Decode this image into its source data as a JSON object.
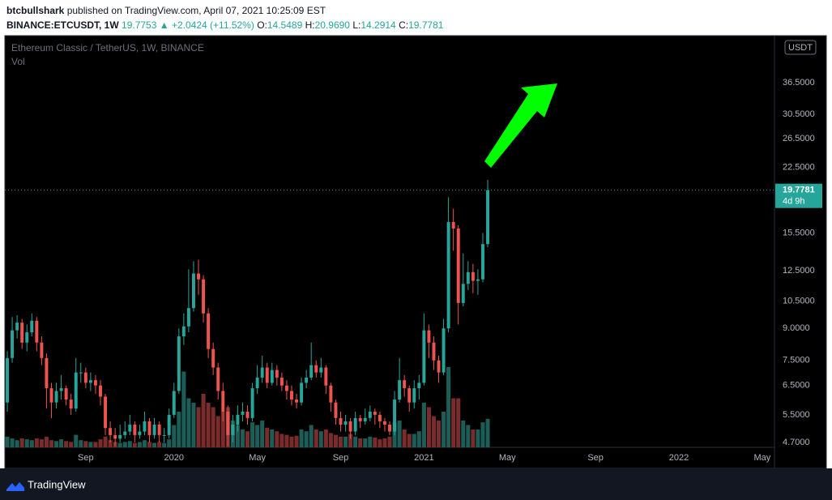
{
  "header": {
    "author": "btcbullshark",
    "published": "published on TradingView.com, April 07, 2021 10:25:09 EST",
    "symbol": "BINANCE:ETCUSDT, 1W",
    "last": "19.7753",
    "direction": "▲",
    "change": "+2.0424 (+11.52%)",
    "ohlc": [
      {
        "label": "O:",
        "value": "14.5489"
      },
      {
        "label": "H:",
        "value": "20.9690"
      },
      {
        "label": "L:",
        "value": "14.2914"
      },
      {
        "label": "C:",
        "value": "19.7781"
      }
    ]
  },
  "footer": {
    "brand": "TradingView"
  },
  "chart_data": {
    "type": "candlestick",
    "title": "Ethereum Classic / TetherUS, 1W, BINANCE",
    "volume_title": "Vol",
    "currency": "USDT",
    "countdown": "4d 9h",
    "log_scale": true,
    "grid": false,
    "up_color": "#26a69a",
    "down_color": "#ef5350",
    "vol_up_color": "#1c5e57",
    "vol_down_color": "#7a2c2c",
    "ylim": [
      4.57,
      47.7
    ],
    "vlim": [
      0,
      100
    ],
    "yticks": [
      {
        "value": 4.7,
        "label": "4.7000"
      },
      {
        "value": 5.5,
        "label": "5.5000"
      },
      {
        "value": 6.5,
        "label": "6.5000"
      },
      {
        "value": 7.5,
        "label": "7.5000"
      },
      {
        "value": 9,
        "label": "9.0000"
      },
      {
        "value": 10.5,
        "label": "10.5000"
      },
      {
        "value": 12.5,
        "label": "12.5000"
      },
      {
        "value": 15.5,
        "label": "15.5000"
      },
      {
        "value": 22.5,
        "label": "22.5000"
      },
      {
        "value": 26.5,
        "label": "26.5000"
      },
      {
        "value": 30.5,
        "label": "30.5000"
      },
      {
        "value": 36.5,
        "label": "36.5000"
      }
    ],
    "categories": [
      null,
      null,
      null,
      null,
      null,
      null,
      null,
      null,
      null,
      null,
      null,
      null,
      null,
      null,
      null,
      null,
      "Sep",
      null,
      null,
      null,
      null,
      null,
      null,
      null,
      null,
      null,
      null,
      null,
      null,
      null,
      null,
      null,
      null,
      null,
      "2020",
      null,
      null,
      null,
      null,
      null,
      null,
      null,
      null,
      null,
      null,
      null,
      null,
      null,
      null,
      null,
      null,
      "May",
      null,
      null,
      null,
      null,
      null,
      null,
      null,
      null,
      null,
      null,
      null,
      null,
      null,
      null,
      null,
      null,
      "Sep",
      null,
      null,
      null,
      null,
      null,
      null,
      null,
      null,
      null,
      null,
      null,
      null,
      null,
      null,
      null,
      null,
      "2021",
      null,
      null,
      null,
      null,
      null,
      null,
      null,
      null,
      null,
      null,
      null,
      null,
      null,
      null,
      null,
      null,
      "May",
      null,
      null,
      null,
      null,
      null,
      null,
      null,
      null,
      null,
      null,
      null,
      null,
      null,
      null,
      null,
      null,
      null,
      "Sep",
      null,
      null,
      null,
      null,
      null,
      null,
      null,
      null,
      null,
      null,
      null,
      null,
      null,
      null,
      null,
      null,
      "2022",
      null,
      null,
      null,
      null,
      null,
      null,
      null,
      null,
      null,
      null,
      null,
      null,
      null,
      null,
      null,
      null,
      "May",
      null,
      null
    ],
    "open": [
      5.9,
      7.6,
      8.9,
      9.3,
      8.3,
      8.8,
      9.4,
      8.3,
      7.6,
      6.4,
      5.9,
      6.3,
      6.4,
      6.0,
      5.7,
      7.0,
      7.0,
      6.6,
      6.7,
      6.5,
      6.1,
      5.1,
      4.9,
      4.8,
      4.9,
      5.0,
      5.2,
      4.9,
      5.0,
      5.3,
      4.9,
      5.2,
      4.9,
      4.9,
      5.5,
      6.3,
      8.6,
      9.1,
      10.1,
      12.3,
      11.9,
      9.8,
      8.0,
      7.2,
      6.3,
      5.6,
      4.9,
      5.2,
      5.5,
      5.6,
      5.4,
      6.4,
      6.8,
      7.2,
      6.6,
      7.1,
      6.8,
      6.5,
      6.3,
      6.0,
      5.9,
      6.6,
      6.8,
      7.3,
      7.0,
      7.2,
      6.5,
      5.9,
      5.4,
      5.2,
      5.3,
      5.0,
      5.4,
      5.3,
      5.4,
      5.6,
      5.5,
      5.3,
      5.2,
      5.0,
      6.0,
      6.7,
      6.4,
      5.9,
      6.4,
      6.6,
      8.9,
      8.3,
      7.5,
      7.0,
      9.0,
      16.5,
      15.9,
      10.4,
      11.6,
      12.4,
      11.8,
      11.9,
      14.5489,
      null,
      null,
      null,
      null,
      null,
      null,
      null,
      null,
      null,
      null,
      null,
      null,
      null,
      null,
      null,
      null,
      null,
      null,
      null,
      null,
      null,
      null,
      null,
      null,
      null,
      null,
      null,
      null,
      null,
      null,
      null,
      null,
      null,
      null,
      null,
      null,
      null,
      null,
      null,
      null,
      null,
      null,
      null,
      null,
      null,
      null,
      null,
      null,
      null,
      null,
      null,
      null,
      null,
      null,
      null,
      null,
      null,
      null
    ],
    "high": [
      7.9,
      9.6,
      9.7,
      9.5,
      9.2,
      9.8,
      9.6,
      8.6,
      7.8,
      6.6,
      6.6,
      6.9,
      6.5,
      6.2,
      7.6,
      7.4,
      7.2,
      7.0,
      6.9,
      6.7,
      6.2,
      5.3,
      5.1,
      5.2,
      5.3,
      5.5,
      5.3,
      5.2,
      5.6,
      5.4,
      5.4,
      5.3,
      5.1,
      5.7,
      6.6,
      9.0,
      9.8,
      12.6,
      13.2,
      13.3,
      12.2,
      10.1,
      8.3,
      7.4,
      6.6,
      5.8,
      5.5,
      5.8,
      5.9,
      5.8,
      6.6,
      7.3,
      7.7,
      7.4,
      7.4,
      7.3,
      7.0,
      6.7,
      6.5,
      6.2,
      6.8,
      7.1,
      8.3,
      7.5,
      7.6,
      7.3,
      6.6,
      6.0,
      5.6,
      5.5,
      5.4,
      5.6,
      5.5,
      5.7,
      5.8,
      5.7,
      5.6,
      5.4,
      5.3,
      6.3,
      7.6,
      6.9,
      6.5,
      6.7,
      6.9,
      9.8,
      9.2,
      8.6,
      7.7,
      9.5,
      19.0,
      17.8,
      16.2,
      13.8,
      13.2,
      13.0,
      12.6,
      15.5,
      20.969,
      null,
      null,
      null,
      null,
      null,
      null,
      null,
      null,
      null,
      null,
      null,
      null,
      null,
      null,
      null,
      null,
      null,
      null,
      null,
      null,
      null,
      null,
      null,
      null,
      null,
      null,
      null,
      null,
      null,
      null,
      null,
      null,
      null,
      null,
      null,
      null,
      null,
      null,
      null,
      null,
      null,
      null,
      null,
      null,
      null,
      null,
      null,
      null,
      null,
      null,
      null,
      null,
      null,
      null,
      null,
      null,
      null,
      null
    ],
    "low": [
      5.6,
      7.4,
      8.5,
      8.0,
      7.9,
      8.6,
      7.9,
      7.3,
      5.7,
      5.4,
      5.7,
      6.0,
      5.8,
      5.5,
      5.6,
      6.6,
      6.4,
      6.3,
      6.2,
      5.8,
      4.9,
      4.7,
      4.6,
      4.7,
      4.8,
      4.9,
      4.7,
      4.8,
      4.9,
      4.7,
      4.8,
      4.7,
      4.7,
      4.8,
      5.4,
      6.2,
      8.2,
      8.8,
      9.9,
      10.9,
      9.3,
      7.6,
      6.9,
      6.0,
      5.3,
      4.6,
      4.7,
      5.0,
      5.3,
      5.2,
      5.3,
      6.2,
      6.6,
      6.4,
      6.5,
      6.5,
      6.3,
      6.0,
      5.8,
      5.7,
      5.8,
      6.4,
      6.7,
      6.8,
      6.8,
      6.2,
      5.6,
      5.2,
      5.0,
      5.0,
      4.8,
      4.9,
      5.1,
      5.2,
      5.3,
      5.2,
      5.1,
      5.0,
      4.9,
      4.9,
      5.9,
      6.1,
      5.6,
      5.7,
      6.0,
      6.5,
      7.6,
      7.1,
      6.6,
      6.9,
      8.8,
      14.0,
      9.2,
      10.2,
      11.2,
      11.0,
      10.9,
      11.7,
      14.2914,
      null,
      null,
      null,
      null,
      null,
      null,
      null,
      null,
      null,
      null,
      null,
      null,
      null,
      null,
      null,
      null,
      null,
      null,
      null,
      null,
      null,
      null,
      null,
      null,
      null,
      null,
      null,
      null,
      null,
      null,
      null,
      null,
      null,
      null,
      null,
      null,
      null,
      null,
      null,
      null,
      null,
      null,
      null,
      null,
      null,
      null,
      null,
      null,
      null,
      null,
      null,
      null,
      null,
      null,
      null,
      null,
      null,
      null
    ],
    "close": [
      7.6,
      8.9,
      9.3,
      8.3,
      8.8,
      9.4,
      8.3,
      7.6,
      6.4,
      5.9,
      6.3,
      6.4,
      6.0,
      5.7,
      7.0,
      7.0,
      6.6,
      6.7,
      6.5,
      6.1,
      5.1,
      4.9,
      4.8,
      4.9,
      5.0,
      5.2,
      4.9,
      5.0,
      5.3,
      4.9,
      5.2,
      4.9,
      4.9,
      5.5,
      6.3,
      8.6,
      9.1,
      10.1,
      12.3,
      11.9,
      9.8,
      8.0,
      7.2,
      6.3,
      5.6,
      4.9,
      5.2,
      5.5,
      5.6,
      5.4,
      6.4,
      6.8,
      7.2,
      6.6,
      7.1,
      6.8,
      6.5,
      6.3,
      6.0,
      5.9,
      6.6,
      6.8,
      7.3,
      7.0,
      7.2,
      6.5,
      5.9,
      5.4,
      5.2,
      5.3,
      5.0,
      5.4,
      5.3,
      5.4,
      5.6,
      5.5,
      5.3,
      5.2,
      5.0,
      6.0,
      6.7,
      6.4,
      5.9,
      6.4,
      6.6,
      8.9,
      8.3,
      7.5,
      7.0,
      9.0,
      16.5,
      15.9,
      10.4,
      11.6,
      12.4,
      11.8,
      11.9,
      14.5489,
      19.7781,
      null,
      null,
      null,
      null,
      null,
      null,
      null,
      null,
      null,
      null,
      null,
      null,
      null,
      null,
      null,
      null,
      null,
      null,
      null,
      null,
      null,
      null,
      null,
      null,
      null,
      null,
      null,
      null,
      null,
      null,
      null,
      null,
      null,
      null,
      null,
      null,
      null,
      null,
      null,
      null,
      null,
      null,
      null,
      null,
      null,
      null,
      null,
      null,
      null,
      null,
      null,
      null,
      null,
      null,
      null,
      null,
      null,
      null
    ],
    "volume": [
      12,
      10,
      8,
      10,
      9,
      8,
      10,
      9,
      12,
      8,
      7,
      9,
      7,
      6,
      14,
      8,
      7,
      6,
      6,
      9,
      12,
      8,
      6,
      5,
      6,
      7,
      5,
      6,
      8,
      6,
      5,
      6,
      5,
      9,
      25,
      40,
      85,
      55,
      50,
      45,
      60,
      50,
      45,
      35,
      40,
      45,
      30,
      25,
      20,
      18,
      28,
      25,
      30,
      22,
      20,
      18,
      15,
      14,
      12,
      13,
      20,
      18,
      25,
      20,
      18,
      20,
      16,
      14,
      12,
      12,
      15,
      12,
      10,
      10,
      12,
      11,
      9,
      10,
      12,
      28,
      30,
      20,
      15,
      15,
      18,
      50,
      45,
      35,
      30,
      40,
      90,
      55,
      55,
      30,
      25,
      20,
      20,
      28,
      32,
      null,
      null,
      null,
      null,
      null,
      null,
      null,
      null,
      null,
      null,
      null,
      null,
      null,
      null,
      null,
      null,
      null,
      null,
      null,
      null,
      null,
      null,
      null,
      null,
      null,
      null,
      null,
      null,
      null,
      null,
      null,
      null,
      null,
      null,
      null,
      null,
      null,
      null,
      null,
      null,
      null,
      null,
      null,
      null,
      null,
      null,
      null,
      null,
      null,
      null,
      null,
      null,
      null,
      null,
      null,
      null,
      null,
      null
    ]
  }
}
